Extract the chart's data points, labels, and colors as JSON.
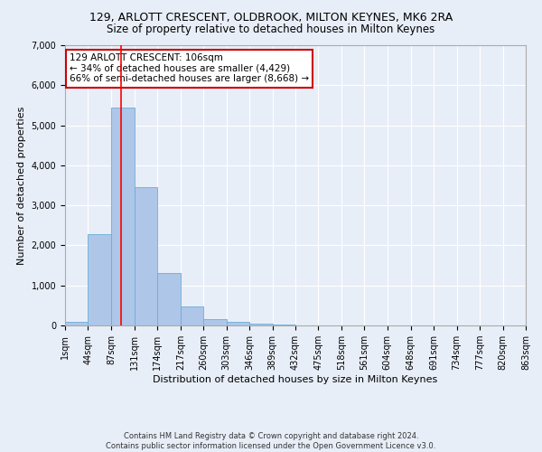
{
  "title_line1": "129, ARLOTT CRESCENT, OLDBROOK, MILTON KEYNES, MK6 2RA",
  "title_line2": "Size of property relative to detached houses in Milton Keynes",
  "xlabel": "Distribution of detached houses by size in Milton Keynes",
  "ylabel": "Number of detached properties",
  "footer_line1": "Contains HM Land Registry data © Crown copyright and database right 2024.",
  "footer_line2": "Contains public sector information licensed under the Open Government Licence v3.0.",
  "bin_edges": [
    1,
    44,
    87,
    131,
    174,
    217,
    260,
    303,
    346,
    389,
    432,
    475,
    518,
    561,
    604,
    648,
    691,
    734,
    777,
    820,
    863
  ],
  "bar_heights": [
    80,
    2280,
    5450,
    3450,
    1300,
    470,
    160,
    90,
    55,
    30,
    0,
    0,
    0,
    0,
    0,
    0,
    0,
    0,
    0,
    0
  ],
  "bar_color": "#aec6e8",
  "bar_edge_color": "#6aafd6",
  "background_color": "#e8eef8",
  "grid_color": "#ffffff",
  "red_line_x": 106,
  "annotation_text_line1": "129 ARLOTT CRESCENT: 106sqm",
  "annotation_text_line2": "← 34% of detached houses are smaller (4,429)",
  "annotation_text_line3": "66% of semi-detached houses are larger (8,668) →",
  "annotation_box_color": "#ffffff",
  "annotation_box_edge_color": "#cc0000",
  "ylim": [
    0,
    7000
  ],
  "yticks": [
    0,
    1000,
    2000,
    3000,
    4000,
    5000,
    6000,
    7000
  ],
  "tick_labels": [
    "1sqm",
    "44sqm",
    "87sqm",
    "131sqm",
    "174sqm",
    "217sqm",
    "260sqm",
    "303sqm",
    "346sqm",
    "389sqm",
    "432sqm",
    "475sqm",
    "518sqm",
    "561sqm",
    "604sqm",
    "648sqm",
    "691sqm",
    "734sqm",
    "777sqm",
    "820sqm",
    "863sqm"
  ],
  "title1_fontsize": 9,
  "title2_fontsize": 8.5,
  "xlabel_fontsize": 8,
  "ylabel_fontsize": 8,
  "tick_fontsize": 7,
  "annotation_fontsize": 7.5,
  "footer_fontsize": 6
}
